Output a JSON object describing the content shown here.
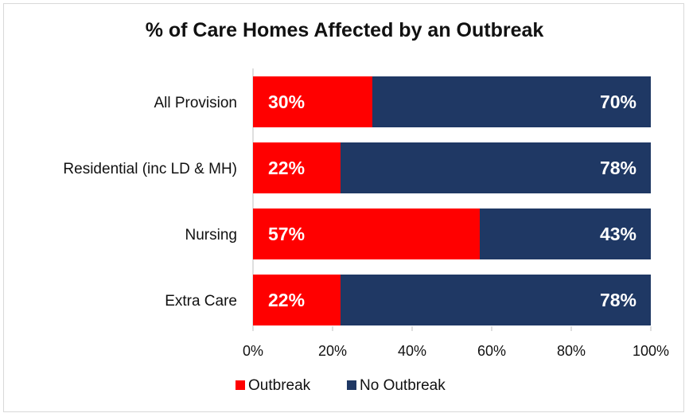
{
  "chart_data": {
    "type": "bar",
    "orientation": "horizontal",
    "stacked": true,
    "title": "% of Care Homes Affected by an Outbreak",
    "categories": [
      "All Provision",
      "Residential (inc LD & MH)",
      "Nursing",
      "Extra Care"
    ],
    "series": [
      {
        "name": "Outbreak",
        "color": "#ff0000",
        "values": [
          30,
          22,
          57,
          22
        ],
        "labels": [
          "30%",
          "22%",
          "57%",
          "22%"
        ]
      },
      {
        "name": "No Outbreak",
        "color": "#1f3864",
        "values": [
          70,
          78,
          43,
          78
        ],
        "labels": [
          "70%",
          "78%",
          "43%",
          "78%"
        ]
      }
    ],
    "xlim": [
      0,
      100
    ],
    "xticks": [
      "0%",
      "20%",
      "40%",
      "60%",
      "80%",
      "100%"
    ],
    "grid": false,
    "legend_position": "bottom"
  }
}
